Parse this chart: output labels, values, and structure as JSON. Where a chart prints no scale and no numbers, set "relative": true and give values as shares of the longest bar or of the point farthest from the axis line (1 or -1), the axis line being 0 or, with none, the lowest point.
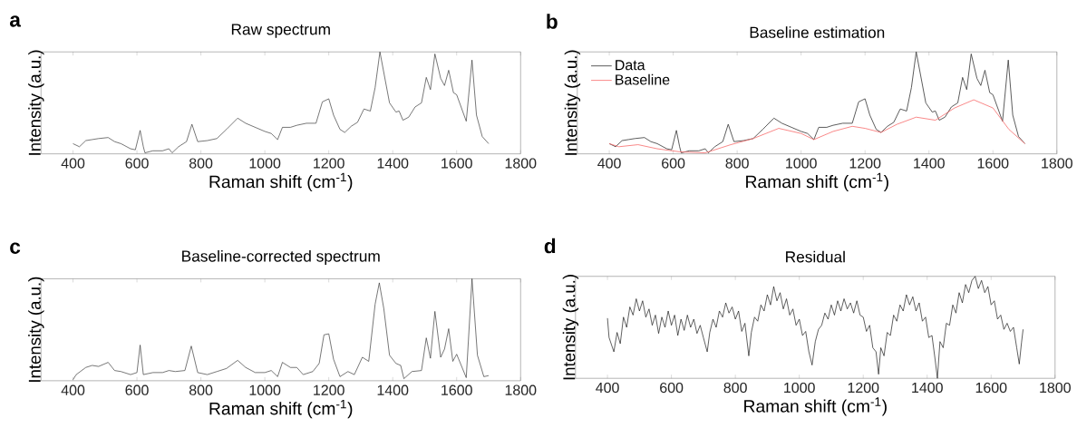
{
  "chart_data": [
    {
      "type": "line",
      "title": "Raw spectrum",
      "xlabel": "Raman shift (cm$^{-1}$)",
      "ylabel": "Intensity (a.u.)",
      "annotations": [
        "a"
      ],
      "relative": true,
      "xlim": [
        300,
        1800
      ],
      "xticks": [
        400,
        600,
        800,
        1000,
        1200,
        1400,
        1600,
        1800
      ],
      "series": [
        {
          "color": "#333333",
          "x": [
            400,
            420,
            440,
            460,
            480,
            510,
            530,
            550,
            580,
            595,
            610,
            620,
            625,
            650,
            680,
            700,
            710,
            730,
            755,
            772,
            790,
            820,
            850,
            880,
            915,
            940,
            970,
            1000,
            1020,
            1040,
            1055,
            1080,
            1100,
            1130,
            1160,
            1180,
            1200,
            1215,
            1235,
            1250,
            1270,
            1290,
            1310,
            1330,
            1345,
            1360,
            1375,
            1390,
            1410,
            1420,
            1432,
            1450,
            1470,
            1490,
            1505,
            1518,
            1532,
            1550,
            1562,
            1575,
            1590,
            1600,
            1630,
            1648,
            1662,
            1680,
            1700
          ],
          "values": [
            0.1,
            0.07,
            0.13,
            0.14,
            0.15,
            0.16,
            0.12,
            0.1,
            0.05,
            0.04,
            0.23,
            0.07,
            0.01,
            0.03,
            0.03,
            0.05,
            0.01,
            0.07,
            0.12,
            0.29,
            0.12,
            0.13,
            0.15,
            0.24,
            0.35,
            0.3,
            0.26,
            0.22,
            0.2,
            0.14,
            0.26,
            0.26,
            0.28,
            0.3,
            0.3,
            0.51,
            0.54,
            0.38,
            0.24,
            0.21,
            0.27,
            0.31,
            0.44,
            0.42,
            0.65,
            1.0,
            0.75,
            0.5,
            0.41,
            0.42,
            0.33,
            0.36,
            0.46,
            0.5,
            0.75,
            0.63,
            0.98,
            0.74,
            0.67,
            0.82,
            0.6,
            0.58,
            0.32,
            0.92,
            0.38,
            0.17,
            0.1
          ]
        }
      ]
    },
    {
      "type": "line",
      "title": "Baseline estimation",
      "xlabel": "Raman shift (cm$^{-1}$)",
      "ylabel": "Intensity (a.u.)",
      "annotations": [
        "b"
      ],
      "relative": true,
      "xlim": [
        300,
        1800
      ],
      "xticks": [
        400,
        600,
        800,
        1000,
        1200,
        1400,
        1600,
        1800
      ],
      "legend": "top left",
      "series": [
        {
          "name": "Data",
          "color": "#333333",
          "x": [
            400,
            420,
            440,
            460,
            480,
            510,
            530,
            550,
            580,
            595,
            610,
            620,
            625,
            650,
            680,
            700,
            710,
            730,
            755,
            772,
            790,
            820,
            850,
            880,
            915,
            940,
            970,
            1000,
            1020,
            1040,
            1055,
            1080,
            1100,
            1130,
            1160,
            1180,
            1200,
            1215,
            1235,
            1250,
            1270,
            1290,
            1310,
            1330,
            1345,
            1360,
            1375,
            1390,
            1410,
            1420,
            1432,
            1450,
            1470,
            1490,
            1505,
            1518,
            1532,
            1550,
            1562,
            1575,
            1590,
            1600,
            1630,
            1648,
            1662,
            1680,
            1700
          ],
          "values": [
            0.1,
            0.07,
            0.13,
            0.14,
            0.15,
            0.16,
            0.12,
            0.1,
            0.05,
            0.04,
            0.23,
            0.07,
            0.01,
            0.03,
            0.03,
            0.05,
            0.01,
            0.07,
            0.12,
            0.29,
            0.12,
            0.13,
            0.15,
            0.24,
            0.35,
            0.3,
            0.26,
            0.22,
            0.2,
            0.14,
            0.26,
            0.26,
            0.28,
            0.3,
            0.3,
            0.51,
            0.54,
            0.38,
            0.24,
            0.21,
            0.27,
            0.31,
            0.44,
            0.42,
            0.65,
            1.0,
            0.75,
            0.5,
            0.41,
            0.42,
            0.33,
            0.36,
            0.46,
            0.5,
            0.75,
            0.63,
            0.98,
            0.74,
            0.67,
            0.82,
            0.6,
            0.58,
            0.32,
            0.92,
            0.38,
            0.17,
            0.1
          ]
        },
        {
          "name": "Baseline",
          "color": "#f86b6b",
          "x": [
            400,
            430,
            490,
            550,
            620,
            700,
            780,
            850,
            930,
            1000,
            1040,
            1100,
            1160,
            1200,
            1250,
            1300,
            1360,
            1420,
            1480,
            1540,
            1600,
            1650,
            1700
          ],
          "values": [
            0.1,
            0.07,
            0.09,
            0.05,
            0.02,
            0.01,
            0.09,
            0.15,
            0.25,
            0.2,
            0.14,
            0.22,
            0.27,
            0.25,
            0.21,
            0.29,
            0.36,
            0.33,
            0.45,
            0.53,
            0.45,
            0.24,
            0.1
          ]
        }
      ]
    },
    {
      "type": "line",
      "title": "Baseline-corrected spectrum",
      "xlabel": "Raman shift (cm$^{-1}$)",
      "ylabel": "Intensity (a.u.)",
      "annotations": [
        "c"
      ],
      "relative": true,
      "xlim": [
        300,
        1800
      ],
      "xticks": [
        400,
        600,
        800,
        1000,
        1200,
        1400,
        1600,
        1800
      ],
      "series": [
        {
          "color": "#333333",
          "x": [
            400,
            410,
            440,
            460,
            480,
            510,
            530,
            550,
            580,
            600,
            610,
            620,
            650,
            680,
            700,
            720,
            750,
            770,
            790,
            820,
            850,
            880,
            915,
            940,
            970,
            1000,
            1020,
            1040,
            1055,
            1080,
            1100,
            1120,
            1150,
            1170,
            1185,
            1200,
            1215,
            1235,
            1260,
            1280,
            1305,
            1325,
            1345,
            1358,
            1372,
            1390,
            1410,
            1425,
            1435,
            1460,
            1490,
            1505,
            1518,
            1532,
            1550,
            1562,
            1575,
            1588,
            1600,
            1630,
            1648,
            1665,
            1685,
            1700
          ],
          "values": [
            0.01,
            0.06,
            0.13,
            0.15,
            0.14,
            0.18,
            0.1,
            0.09,
            0.06,
            0.08,
            0.35,
            0.06,
            0.08,
            0.08,
            0.1,
            0.09,
            0.1,
            0.34,
            0.08,
            0.06,
            0.09,
            0.12,
            0.2,
            0.13,
            0.08,
            0.08,
            0.1,
            0.04,
            0.18,
            0.13,
            0.13,
            0.06,
            0.09,
            0.17,
            0.45,
            0.46,
            0.21,
            0.04,
            0.09,
            0.06,
            0.23,
            0.19,
            0.75,
            0.96,
            0.71,
            0.25,
            0.17,
            0.15,
            0.02,
            0.09,
            0.1,
            0.42,
            0.22,
            0.68,
            0.23,
            0.31,
            0.51,
            0.19,
            0.26,
            0.03,
            1.0,
            0.25,
            0.04,
            0.05
          ]
        }
      ]
    },
    {
      "type": "line",
      "title": "Residual",
      "xlabel": "Raman shift (cm$^{-1}$)",
      "ylabel": "Intensity (a.u.)",
      "annotations": [
        "d"
      ],
      "relative": true,
      "xlim": [
        300,
        1800
      ],
      "xticks": [
        400,
        600,
        800,
        1000,
        1200,
        1400,
        1600,
        1800
      ],
      "series": [
        {
          "color": "#111111",
          "x": [
            400,
            405,
            420,
            430,
            440,
            450,
            460,
            470,
            480,
            490,
            500,
            510,
            520,
            530,
            540,
            550,
            560,
            570,
            580,
            590,
            600,
            610,
            620,
            630,
            640,
            650,
            660,
            670,
            680,
            690,
            700,
            712,
            720,
            730,
            740,
            750,
            760,
            770,
            780,
            790,
            800,
            810,
            820,
            830,
            842,
            850,
            860,
            870,
            880,
            890,
            900,
            910,
            920,
            930,
            940,
            950,
            960,
            970,
            980,
            990,
            1000,
            1010,
            1020,
            1030,
            1040,
            1050,
            1060,
            1070,
            1080,
            1090,
            1100,
            1110,
            1120,
            1130,
            1140,
            1150,
            1160,
            1170,
            1180,
            1190,
            1200,
            1210,
            1220,
            1230,
            1240,
            1248,
            1255,
            1265,
            1275,
            1285,
            1295,
            1305,
            1315,
            1325,
            1335,
            1345,
            1355,
            1365,
            1375,
            1385,
            1395,
            1405,
            1415,
            1425,
            1432,
            1440,
            1450,
            1460,
            1470,
            1480,
            1490,
            1500,
            1510,
            1520,
            1530,
            1540,
            1550,
            1560,
            1570,
            1580,
            1590,
            1600,
            1610,
            1620,
            1630,
            1640,
            1650,
            1660,
            1670,
            1680,
            1688,
            1695,
            1700
          ],
          "values": [
            0.59,
            0.4,
            0.26,
            0.45,
            0.34,
            0.6,
            0.5,
            0.7,
            0.62,
            0.78,
            0.66,
            0.76,
            0.6,
            0.68,
            0.52,
            0.62,
            0.44,
            0.6,
            0.5,
            0.66,
            0.52,
            0.62,
            0.42,
            0.58,
            0.47,
            0.62,
            0.5,
            0.58,
            0.44,
            0.52,
            0.4,
            0.26,
            0.45,
            0.58,
            0.5,
            0.66,
            0.6,
            0.74,
            0.64,
            0.7,
            0.58,
            0.66,
            0.46,
            0.54,
            0.22,
            0.45,
            0.6,
            0.56,
            0.72,
            0.66,
            0.82,
            0.72,
            0.9,
            0.76,
            0.84,
            0.68,
            0.78,
            0.62,
            0.68,
            0.52,
            0.58,
            0.42,
            0.46,
            0.26,
            0.13,
            0.36,
            0.48,
            0.52,
            0.64,
            0.58,
            0.72,
            0.62,
            0.76,
            0.66,
            0.78,
            0.68,
            0.74,
            0.64,
            0.76,
            0.62,
            0.6,
            0.46,
            0.52,
            0.3,
            0.26,
            0.04,
            0.3,
            0.22,
            0.45,
            0.42,
            0.62,
            0.56,
            0.72,
            0.66,
            0.82,
            0.72,
            0.8,
            0.66,
            0.74,
            0.56,
            0.6,
            0.4,
            0.42,
            0.18,
            0.0,
            0.36,
            0.3,
            0.54,
            0.52,
            0.72,
            0.64,
            0.84,
            0.74,
            0.92,
            0.84,
            0.96,
            1.0,
            0.88,
            0.96,
            0.84,
            0.9,
            0.72,
            0.76,
            0.58,
            0.62,
            0.48,
            0.54,
            0.46,
            0.5,
            0.3,
            0.14,
            0.35,
            0.48
          ]
        }
      ]
    }
  ]
}
